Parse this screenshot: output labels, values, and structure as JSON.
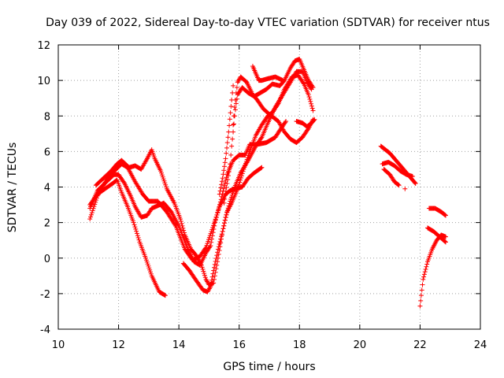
{
  "chart_data": {
    "type": "scatter",
    "title": "Day 039 of 2022, Sidereal Day-to-day VTEC variation (SDTVAR) for receiver ntus",
    "xlabel": "GPS time / hours",
    "ylabel": "SDTVAR / TECUs",
    "xlim": [
      10,
      24
    ],
    "ylim": [
      -4,
      12
    ],
    "xticks": [
      10,
      12,
      14,
      16,
      18,
      20,
      22,
      24
    ],
    "yticks": [
      -4,
      -2,
      0,
      2,
      4,
      6,
      8,
      10,
      12
    ],
    "grid": true,
    "marker": "+",
    "color": "#ff0000",
    "series": [
      {
        "name": "track-1",
        "points": [
          [
            11.05,
            2.2
          ],
          [
            11.3,
            3.5
          ],
          [
            11.6,
            4.4
          ],
          [
            11.8,
            4.8
          ],
          [
            12.1,
            5.3
          ],
          [
            12.3,
            5.1
          ],
          [
            12.55,
            4.3
          ],
          [
            12.8,
            3.6
          ],
          [
            13.0,
            3.2
          ],
          [
            13.3,
            3.2
          ],
          [
            13.6,
            2.6
          ],
          [
            13.9,
            1.8
          ],
          [
            14.2,
            0.5
          ],
          [
            14.45,
            -0.1
          ],
          [
            14.7,
            0.1
          ],
          [
            14.9,
            0.6
          ],
          [
            15.1,
            1.6
          ],
          [
            15.35,
            2.9
          ],
          [
            15.55,
            3.6
          ],
          [
            15.7,
            3.8
          ],
          [
            15.85,
            3.9
          ],
          [
            16.1,
            4.0
          ],
          [
            16.3,
            4.5
          ],
          [
            16.5,
            4.8
          ],
          [
            16.75,
            5.1
          ]
        ]
      },
      {
        "name": "track-2",
        "points": [
          [
            11.05,
            2.8
          ],
          [
            11.3,
            3.8
          ],
          [
            11.6,
            4.3
          ],
          [
            11.85,
            4.7
          ],
          [
            12.0,
            4.7
          ],
          [
            12.2,
            4.2
          ],
          [
            12.4,
            3.5
          ],
          [
            12.55,
            2.9
          ],
          [
            12.75,
            2.3
          ],
          [
            12.95,
            2.4
          ],
          [
            13.1,
            2.8
          ],
          [
            13.5,
            3.1
          ],
          [
            13.75,
            2.6
          ],
          [
            14.0,
            1.8
          ],
          [
            14.3,
            0.5
          ],
          [
            14.5,
            -0.2
          ],
          [
            14.7,
            -0.4
          ],
          [
            14.9,
            0.3
          ],
          [
            15.05,
            0.7
          ],
          [
            15.2,
            2.0
          ],
          [
            15.4,
            3.3
          ],
          [
            15.6,
            4.7
          ],
          [
            15.8,
            5.5
          ],
          [
            16.0,
            5.8
          ],
          [
            16.2,
            5.8
          ],
          [
            16.35,
            6.4
          ],
          [
            16.6,
            6.4
          ],
          [
            16.9,
            6.5
          ],
          [
            17.2,
            6.8
          ],
          [
            17.35,
            7.2
          ],
          [
            17.55,
            7.7
          ]
        ]
      },
      {
        "name": "track-3",
        "points": [
          [
            11.05,
            3.0
          ],
          [
            11.3,
            3.6
          ],
          [
            11.55,
            3.9
          ],
          [
            11.8,
            4.2
          ],
          [
            11.95,
            4.4
          ],
          [
            12.1,
            3.7
          ],
          [
            12.3,
            2.9
          ],
          [
            12.5,
            2.0
          ],
          [
            12.7,
            0.9
          ],
          [
            12.9,
            0.0
          ],
          [
            13.1,
            -1.0
          ],
          [
            13.35,
            -1.9
          ],
          [
            13.55,
            -2.1
          ]
        ]
      },
      {
        "name": "track-4",
        "points": [
          [
            11.25,
            4.1
          ],
          [
            11.5,
            4.5
          ],
          [
            11.75,
            4.9
          ],
          [
            11.95,
            5.3
          ],
          [
            12.1,
            5.5
          ],
          [
            12.35,
            5.1
          ],
          [
            12.55,
            5.2
          ],
          [
            12.75,
            5.0
          ],
          [
            12.95,
            5.6
          ],
          [
            13.1,
            6.1
          ],
          [
            13.2,
            5.6
          ],
          [
            13.4,
            4.9
          ],
          [
            13.6,
            3.9
          ],
          [
            13.85,
            3.1
          ],
          [
            14.05,
            2.2
          ],
          [
            14.2,
            1.3
          ],
          [
            14.4,
            0.5
          ],
          [
            14.55,
            0.2
          ],
          [
            14.75,
            -0.4
          ],
          [
            14.9,
            -1.2
          ],
          [
            15.0,
            -1.5
          ],
          [
            15.15,
            -1.4
          ],
          [
            15.3,
            0.0
          ],
          [
            15.45,
            1.5
          ],
          [
            15.6,
            2.6
          ],
          [
            15.75,
            3.1
          ],
          [
            15.95,
            3.9
          ],
          [
            16.15,
            5.0
          ],
          [
            16.35,
            6.0
          ],
          [
            16.55,
            6.9
          ],
          [
            16.75,
            7.5
          ],
          [
            16.95,
            8.0
          ],
          [
            17.1,
            8.2
          ],
          [
            17.3,
            8.7
          ],
          [
            17.5,
            9.5
          ],
          [
            17.75,
            10.2
          ],
          [
            17.95,
            10.3
          ],
          [
            18.15,
            9.8
          ],
          [
            18.3,
            9.2
          ],
          [
            18.45,
            8.3
          ]
        ]
      },
      {
        "name": "track-5",
        "points": [
          [
            14.15,
            -0.3
          ],
          [
            14.35,
            -0.7
          ],
          [
            14.55,
            -1.2
          ],
          [
            14.8,
            -1.8
          ],
          [
            14.95,
            -1.9
          ],
          [
            15.05,
            -1.6
          ],
          [
            15.15,
            -0.7
          ],
          [
            15.3,
            0.5
          ],
          [
            15.45,
            1.5
          ],
          [
            15.55,
            2.3
          ],
          [
            15.7,
            3.2
          ],
          [
            15.85,
            4.0
          ],
          [
            16.05,
            4.8
          ],
          [
            16.3,
            5.5
          ],
          [
            16.55,
            6.3
          ],
          [
            16.75,
            6.8
          ],
          [
            16.95,
            7.6
          ],
          [
            17.2,
            8.5
          ],
          [
            17.45,
            9.2
          ],
          [
            17.7,
            9.9
          ],
          [
            17.9,
            10.5
          ],
          [
            18.1,
            10.5
          ],
          [
            18.25,
            9.9
          ],
          [
            18.4,
            9.5
          ]
        ]
      },
      {
        "name": "track-6",
        "points": [
          [
            15.8,
            7.5
          ],
          [
            15.85,
            8.5
          ],
          [
            15.9,
            9.3
          ],
          [
            15.95,
            9.9
          ],
          [
            16.05,
            10.2
          ],
          [
            16.25,
            9.9
          ],
          [
            16.45,
            9.2
          ],
          [
            16.6,
            8.9
          ],
          [
            16.8,
            8.4
          ],
          [
            17.0,
            8.1
          ],
          [
            17.3,
            7.7
          ],
          [
            17.5,
            7.1
          ],
          [
            17.7,
            6.7
          ],
          [
            17.9,
            6.5
          ],
          [
            18.1,
            6.8
          ],
          [
            18.3,
            7.3
          ],
          [
            18.45,
            7.8
          ]
        ]
      },
      {
        "name": "track-7",
        "points": [
          [
            15.5,
            3.1
          ],
          [
            15.6,
            4.2
          ],
          [
            15.7,
            5.3
          ],
          [
            15.75,
            6.3
          ],
          [
            15.8,
            7.1
          ],
          [
            15.85,
            8.0
          ],
          [
            15.9,
            8.7
          ],
          [
            15.95,
            9.2
          ],
          [
            16.1,
            9.6
          ],
          [
            16.3,
            9.3
          ],
          [
            16.5,
            9.1
          ],
          [
            16.7,
            9.3
          ],
          [
            16.9,
            9.5
          ],
          [
            17.1,
            9.8
          ],
          [
            17.35,
            9.7
          ],
          [
            17.5,
            10.0
          ],
          [
            17.7,
            10.7
          ],
          [
            17.85,
            11.1
          ],
          [
            18.0,
            11.2
          ],
          [
            18.15,
            10.6
          ],
          [
            18.3,
            10.0
          ],
          [
            18.45,
            9.6
          ]
        ]
      },
      {
        "name": "track-8",
        "points": [
          [
            16.45,
            10.8
          ],
          [
            16.55,
            10.4
          ],
          [
            16.65,
            10.0
          ],
          [
            16.75,
            10.0
          ],
          [
            16.95,
            10.1
          ],
          [
            17.2,
            10.2
          ],
          [
            17.45,
            10.0
          ]
        ]
      },
      {
        "name": "track-9",
        "points": [
          [
            15.35,
            3.6
          ],
          [
            15.45,
            4.5
          ],
          [
            15.55,
            5.6
          ],
          [
            15.65,
            7.1
          ],
          [
            15.75,
            8.9
          ],
          [
            15.8,
            9.7
          ]
        ]
      },
      {
        "name": "track-10",
        "points": [
          [
            17.9,
            7.7
          ],
          [
            18.1,
            7.6
          ],
          [
            18.25,
            7.4
          ],
          [
            18.4,
            7.6
          ],
          [
            18.5,
            7.8
          ]
        ]
      },
      {
        "name": "track-11",
        "points": [
          [
            20.7,
            6.3
          ],
          [
            20.85,
            6.1
          ],
          [
            21.0,
            5.9
          ],
          [
            21.15,
            5.6
          ],
          [
            21.3,
            5.3
          ],
          [
            21.45,
            5.0
          ],
          [
            21.6,
            4.7
          ],
          [
            21.75,
            4.4
          ],
          [
            21.85,
            4.2
          ]
        ]
      },
      {
        "name": "track-12",
        "points": [
          [
            20.75,
            5.3
          ],
          [
            20.95,
            5.4
          ],
          [
            21.15,
            5.2
          ],
          [
            21.35,
            4.9
          ],
          [
            21.55,
            4.7
          ],
          [
            21.75,
            4.6
          ]
        ]
      },
      {
        "name": "track-13",
        "points": [
          [
            20.8,
            5.0
          ],
          [
            21.0,
            4.7
          ],
          [
            21.15,
            4.3
          ],
          [
            21.3,
            4.1
          ]
        ]
      },
      {
        "name": "track-14",
        "points": [
          [
            21.5,
            3.9
          ]
        ]
      },
      {
        "name": "track-15",
        "points": [
          [
            22.0,
            -2.7
          ],
          [
            22.1,
            -1.2
          ],
          [
            22.25,
            -0.2
          ],
          [
            22.4,
            0.5
          ],
          [
            22.55,
            1.0
          ],
          [
            22.7,
            1.3
          ],
          [
            22.85,
            1.2
          ]
        ]
      },
      {
        "name": "track-16",
        "points": [
          [
            22.3,
            2.8
          ],
          [
            22.5,
            2.8
          ],
          [
            22.7,
            2.6
          ],
          [
            22.85,
            2.4
          ]
        ]
      },
      {
        "name": "track-17",
        "points": [
          [
            22.25,
            1.7
          ],
          [
            22.45,
            1.5
          ],
          [
            22.65,
            1.2
          ],
          [
            22.85,
            0.9
          ]
        ]
      }
    ]
  }
}
